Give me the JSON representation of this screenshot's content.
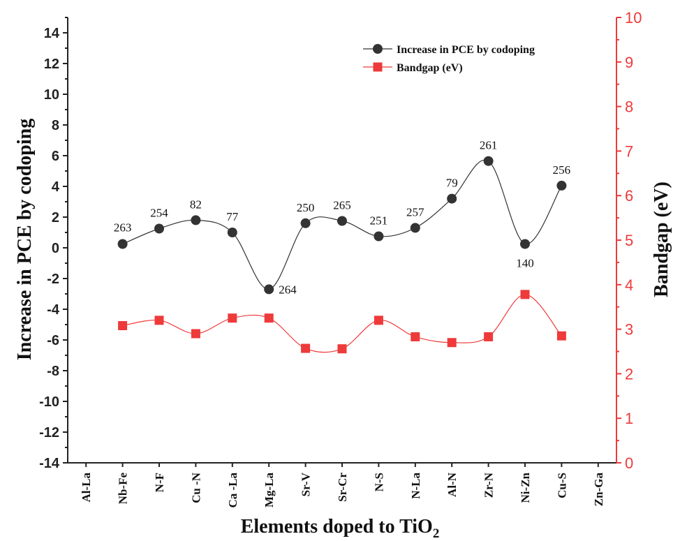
{
  "chart_data": {
    "type": "line",
    "categories": [
      "Al-La",
      "Nb-Fe",
      "N-F",
      "Cu -N",
      "Ca -La",
      "Mg-La",
      "Sr-V",
      "Sr-Cr",
      "N-S",
      "N-La",
      "Al-N",
      "Zr-N",
      "Ni-Zn",
      "Cu-S",
      "Zn-Ga"
    ],
    "series": [
      {
        "name": "Increase in PCE by codoping",
        "axis": "left",
        "color": "#333333",
        "marker": "circle",
        "values": [
          null,
          0.25,
          1.25,
          1.8,
          1.0,
          -2.7,
          1.6,
          1.75,
          0.75,
          1.3,
          3.2,
          5.65,
          0.25,
          4.05,
          null
        ],
        "point_labels": [
          "",
          "263",
          "254",
          "82",
          "77",
          "264",
          "250",
          "265",
          "251",
          "257",
          "79",
          "261",
          "140",
          "256",
          ""
        ]
      },
      {
        "name": "Bandgap (eV)",
        "axis": "right",
        "color": "#ee3a3a",
        "marker": "square",
        "values": [
          null,
          3.08,
          3.2,
          2.9,
          3.25,
          3.25,
          2.57,
          2.56,
          3.2,
          2.83,
          2.7,
          2.83,
          3.78,
          2.85,
          null
        ]
      }
    ],
    "xlabel": "Elements doped to TiO",
    "xlabel_sub": "2",
    "ylabel_left": "Increase in PCE by codoping",
    "ylabel_right": "Bandgap (eV)",
    "ylim_left": [
      -14,
      15
    ],
    "yticks_left": [
      -14,
      -12,
      -10,
      -8,
      -6,
      -4,
      -2,
      0,
      2,
      4,
      6,
      8,
      10,
      12,
      14
    ],
    "ylim_right": [
      0,
      10
    ],
    "yticks_right": [
      0,
      1,
      2,
      3,
      4,
      5,
      6,
      7,
      8,
      9,
      10
    ],
    "grid": false,
    "legend_position": "top-right",
    "smooth": true
  }
}
